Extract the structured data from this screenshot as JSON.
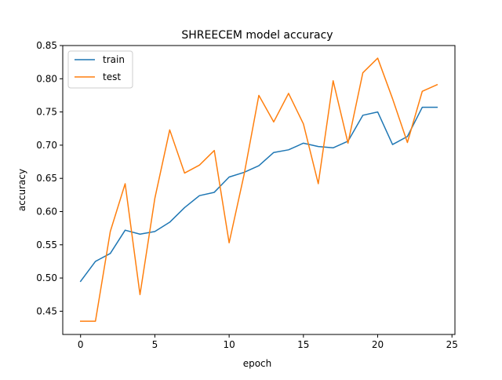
{
  "chart_data": {
    "type": "line",
    "title": "SHREECEM model accuracy",
    "xlabel": "epoch",
    "ylabel": "accuracy",
    "xlim": [
      -1.2,
      25.2
    ],
    "ylim": [
      0.415,
      0.85
    ],
    "x_ticks": [
      0,
      5,
      10,
      15,
      20,
      25
    ],
    "x_tick_labels": [
      "0",
      "5",
      "10",
      "15",
      "20",
      "25"
    ],
    "y_ticks": [
      0.45,
      0.5,
      0.55,
      0.6,
      0.65,
      0.7,
      0.75,
      0.8,
      0.85
    ],
    "y_tick_labels": [
      "0.45",
      "0.50",
      "0.55",
      "0.60",
      "0.65",
      "0.70",
      "0.75",
      "0.80",
      "0.85"
    ],
    "grid": false,
    "legend": "top-left",
    "x": [
      0,
      1,
      2,
      3,
      4,
      5,
      6,
      7,
      8,
      9,
      10,
      11,
      12,
      13,
      14,
      15,
      16,
      17,
      18,
      19,
      20,
      21,
      22,
      23,
      24
    ],
    "series": [
      {
        "name": "train",
        "color": "#1f77b4",
        "values": [
          0.495,
          0.525,
          0.537,
          0.572,
          0.566,
          0.57,
          0.584,
          0.606,
          0.624,
          0.629,
          0.652,
          0.659,
          0.669,
          0.689,
          0.693,
          0.703,
          0.698,
          0.696,
          0.706,
          0.745,
          0.75,
          0.701,
          0.713,
          0.757,
          0.757
        ]
      },
      {
        "name": "test",
        "color": "#ff7f0e",
        "values": [
          0.435,
          0.435,
          0.57,
          0.642,
          0.475,
          0.62,
          0.723,
          0.658,
          0.67,
          0.692,
          0.553,
          0.655,
          0.775,
          0.735,
          0.778,
          0.732,
          0.642,
          0.797,
          0.703,
          0.809,
          0.831,
          0.77,
          0.704,
          0.781,
          0.791
        ]
      }
    ]
  }
}
